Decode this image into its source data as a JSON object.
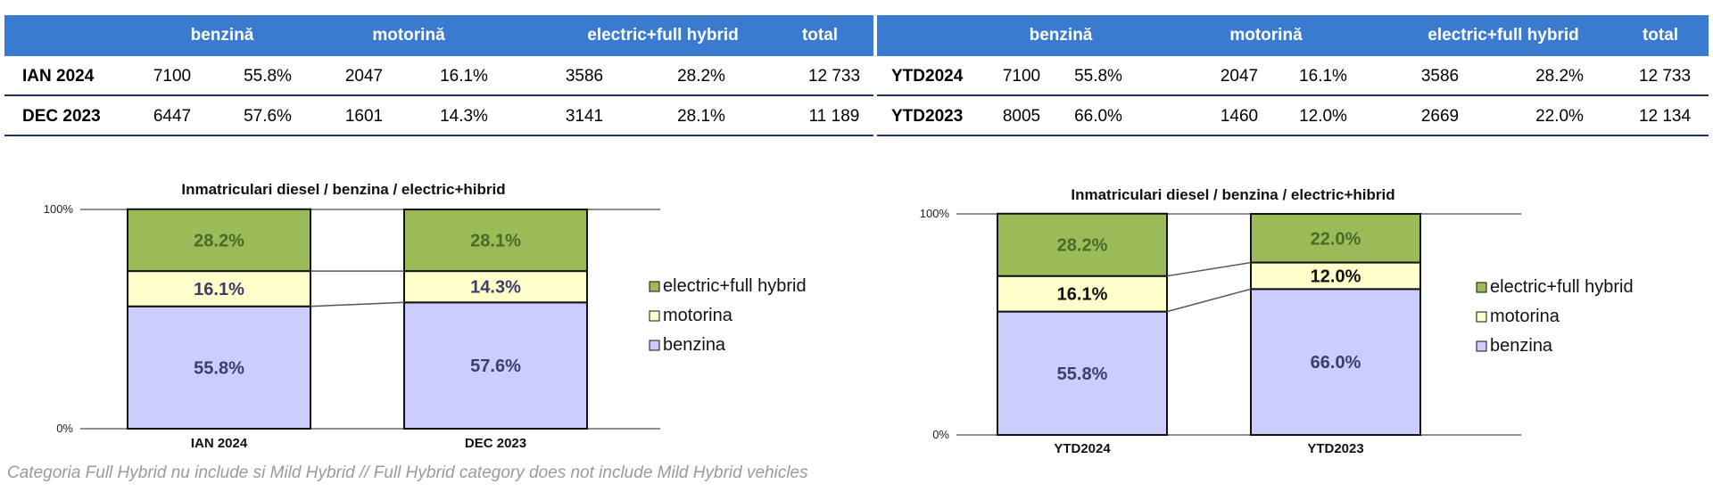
{
  "left_table": {
    "headers": [
      "benzină",
      "motorină",
      "electric+full hybrid",
      "total"
    ],
    "rows": [
      [
        "IAN 2024",
        "7100",
        "55.8%",
        "2047",
        "16.1%",
        "3586",
        "28.2%",
        "12 733"
      ],
      [
        "DEC 2023",
        "6447",
        "57.6%",
        "1601",
        "14.3%",
        "3141",
        "28.1%",
        "11 189"
      ]
    ]
  },
  "right_table": {
    "headers": [
      "benzină",
      "motorină",
      "electric+full hybrid",
      "total"
    ],
    "rows": [
      [
        "YTD2024",
        "7100",
        "55.8%",
        "2047",
        "16.1%",
        "3586",
        "28.2%",
        "12 733"
      ],
      [
        "YTD2023",
        "8005",
        "66.0%",
        "1460",
        "12.0%",
        "2669",
        "22.0%",
        "12 134"
      ]
    ]
  },
  "chart_data": [
    {
      "type": "bar",
      "stacked": true,
      "percent": true,
      "title": "Inmatriculari diesel / benzina / electric+hibrid",
      "categories": [
        "IAN 2024",
        "DEC 2023"
      ],
      "y_tick_labels": [
        "0%",
        "100%"
      ],
      "ylim": [
        0,
        100
      ],
      "series": [
        {
          "name": "benzina",
          "values": [
            55.8,
            57.6
          ],
          "labels": [
            "55.8%",
            "57.6%"
          ],
          "color": "#ccccff",
          "text_color": "#3d3d6b"
        },
        {
          "name": "motorina",
          "values": [
            16.1,
            14.3
          ],
          "labels": [
            "16.1%",
            "14.3%"
          ],
          "color": "#ffffcc",
          "text_color": "#3d3d6b"
        },
        {
          "name": "electric+full hybrid",
          "values": [
            28.2,
            28.1
          ],
          "labels": [
            "28.2%",
            "28.1%"
          ],
          "color": "#9bbb59",
          "text_color": "#4a6a2a"
        }
      ],
      "legend_position": "right"
    },
    {
      "type": "bar",
      "stacked": true,
      "percent": true,
      "title": "Inmatriculari diesel / benzina / electric+hibrid",
      "categories": [
        "YTD2024",
        "YTD2023"
      ],
      "y_tick_labels": [
        "0%",
        "100%"
      ],
      "ylim": [
        0,
        100
      ],
      "series": [
        {
          "name": "benzina",
          "values": [
            55.8,
            66.0
          ],
          "labels": [
            "55.8%",
            "66.0%"
          ],
          "color": "#ccccff",
          "text_color": "#3d3d6b"
        },
        {
          "name": "motorina",
          "values": [
            16.1,
            12.0
          ],
          "labels": [
            "16.1%",
            "12.0%"
          ],
          "color": "#ffffcc",
          "text_color": "#111111"
        },
        {
          "name": "electric+full hybrid",
          "values": [
            28.2,
            22.0
          ],
          "labels": [
            "28.2%",
            "22.0%"
          ],
          "color": "#9bbb59",
          "text_color": "#4a6a2a"
        }
      ],
      "legend_position": "right"
    }
  ],
  "footnote": "Categoria Full Hybrid nu include si Mild Hybrid // Full Hybrid category does not include Mild Hybrid vehicles"
}
